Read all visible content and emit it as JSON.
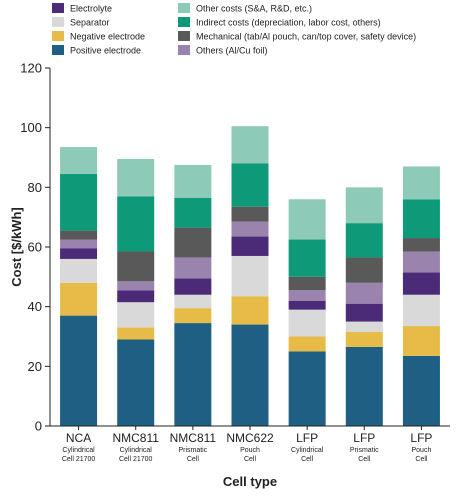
{
  "chart_data": {
    "type": "bar",
    "stacked": true,
    "xlabel": "Cell type",
    "ylabel": "Cost [$/kWh]",
    "ylim": [
      0,
      120
    ],
    "yticks": [
      0,
      20,
      40,
      60,
      80,
      100,
      120
    ],
    "grid": false,
    "legend_position": "top",
    "categories": [
      {
        "name": "NCA",
        "line1": "Cylindrical",
        "line2": "Cell 21700"
      },
      {
        "name": "NMC811",
        "line1": "Cylindrical",
        "line2": "Cell 21700"
      },
      {
        "name": "NMC811",
        "line1": "Prismatic",
        "line2": "Cell"
      },
      {
        "name": "NMC622",
        "line1": "Pouch",
        "line2": "Cell"
      },
      {
        "name": "LFP",
        "line1": "Cylindrical",
        "line2": "Cell"
      },
      {
        "name": "LFP",
        "line1": "Prismatic",
        "line2": "Cell"
      },
      {
        "name": "LFP",
        "line1": "Pouch",
        "line2": "Cell"
      }
    ],
    "series": [
      {
        "name": "Positive electrode",
        "color": "#1f5f84",
        "values": [
          37,
          29,
          34.5,
          34,
          25,
          26.5,
          23.5
        ]
      },
      {
        "name": "Negative electrode",
        "color": "#e6bb48",
        "values": [
          11,
          4,
          5,
          9.5,
          5,
          5,
          10
        ]
      },
      {
        "name": "Separator",
        "color": "#d9d9d9",
        "values": [
          8,
          8.5,
          4.5,
          13.5,
          9,
          3.5,
          10.5
        ]
      },
      {
        "name": "Electrolyte",
        "color": "#4b2a78",
        "values": [
          3.5,
          4,
          5.5,
          6.5,
          3,
          6,
          7.5
        ]
      },
      {
        "name": "Others (Al/Cu foil)",
        "color": "#9a83ad",
        "values": [
          3,
          3,
          7,
          5,
          3.5,
          7,
          7
        ]
      },
      {
        "name": "Mechanical (tab/Al pouch, can/top cover, safety device)",
        "color": "#595959",
        "values": [
          3,
          10,
          10,
          5,
          4.5,
          8.5,
          4.5
        ]
      },
      {
        "name": "Indirect costs (depreciation, labor cost, others)",
        "color": "#0e9a78",
        "values": [
          19,
          18.5,
          10,
          14.5,
          12.5,
          11.5,
          13
        ]
      },
      {
        "name": "Other costs (S&A, R&D, etc.)",
        "color": "#8ecab8",
        "values": [
          9,
          12.5,
          11,
          12.5,
          13.5,
          12,
          11
        ]
      }
    ],
    "legend": [
      {
        "label": "Electrolyte",
        "color": "#4b2a78",
        "col": 0,
        "row": 0
      },
      {
        "label": "Separator",
        "color": "#d9d9d9",
        "col": 0,
        "row": 1
      },
      {
        "label": "Negative electrode",
        "color": "#e6bb48",
        "col": 0,
        "row": 2
      },
      {
        "label": "Positive electrode",
        "color": "#1f5f84",
        "col": 0,
        "row": 3
      },
      {
        "label": "Other costs (S&A, R&D, etc.)",
        "color": "#8ecab8",
        "col": 1,
        "row": 0
      },
      {
        "label": "Indirect costs (depreciation, labor cost, others)",
        "color": "#0e9a78",
        "col": 1,
        "row": 1
      },
      {
        "label": "Mechanical (tab/Al pouch, can/top cover, safety device)",
        "color": "#595959",
        "col": 1,
        "row": 2
      },
      {
        "label": "Others (Al/Cu foil)",
        "color": "#9a83ad",
        "col": 1,
        "row": 3
      }
    ]
  }
}
